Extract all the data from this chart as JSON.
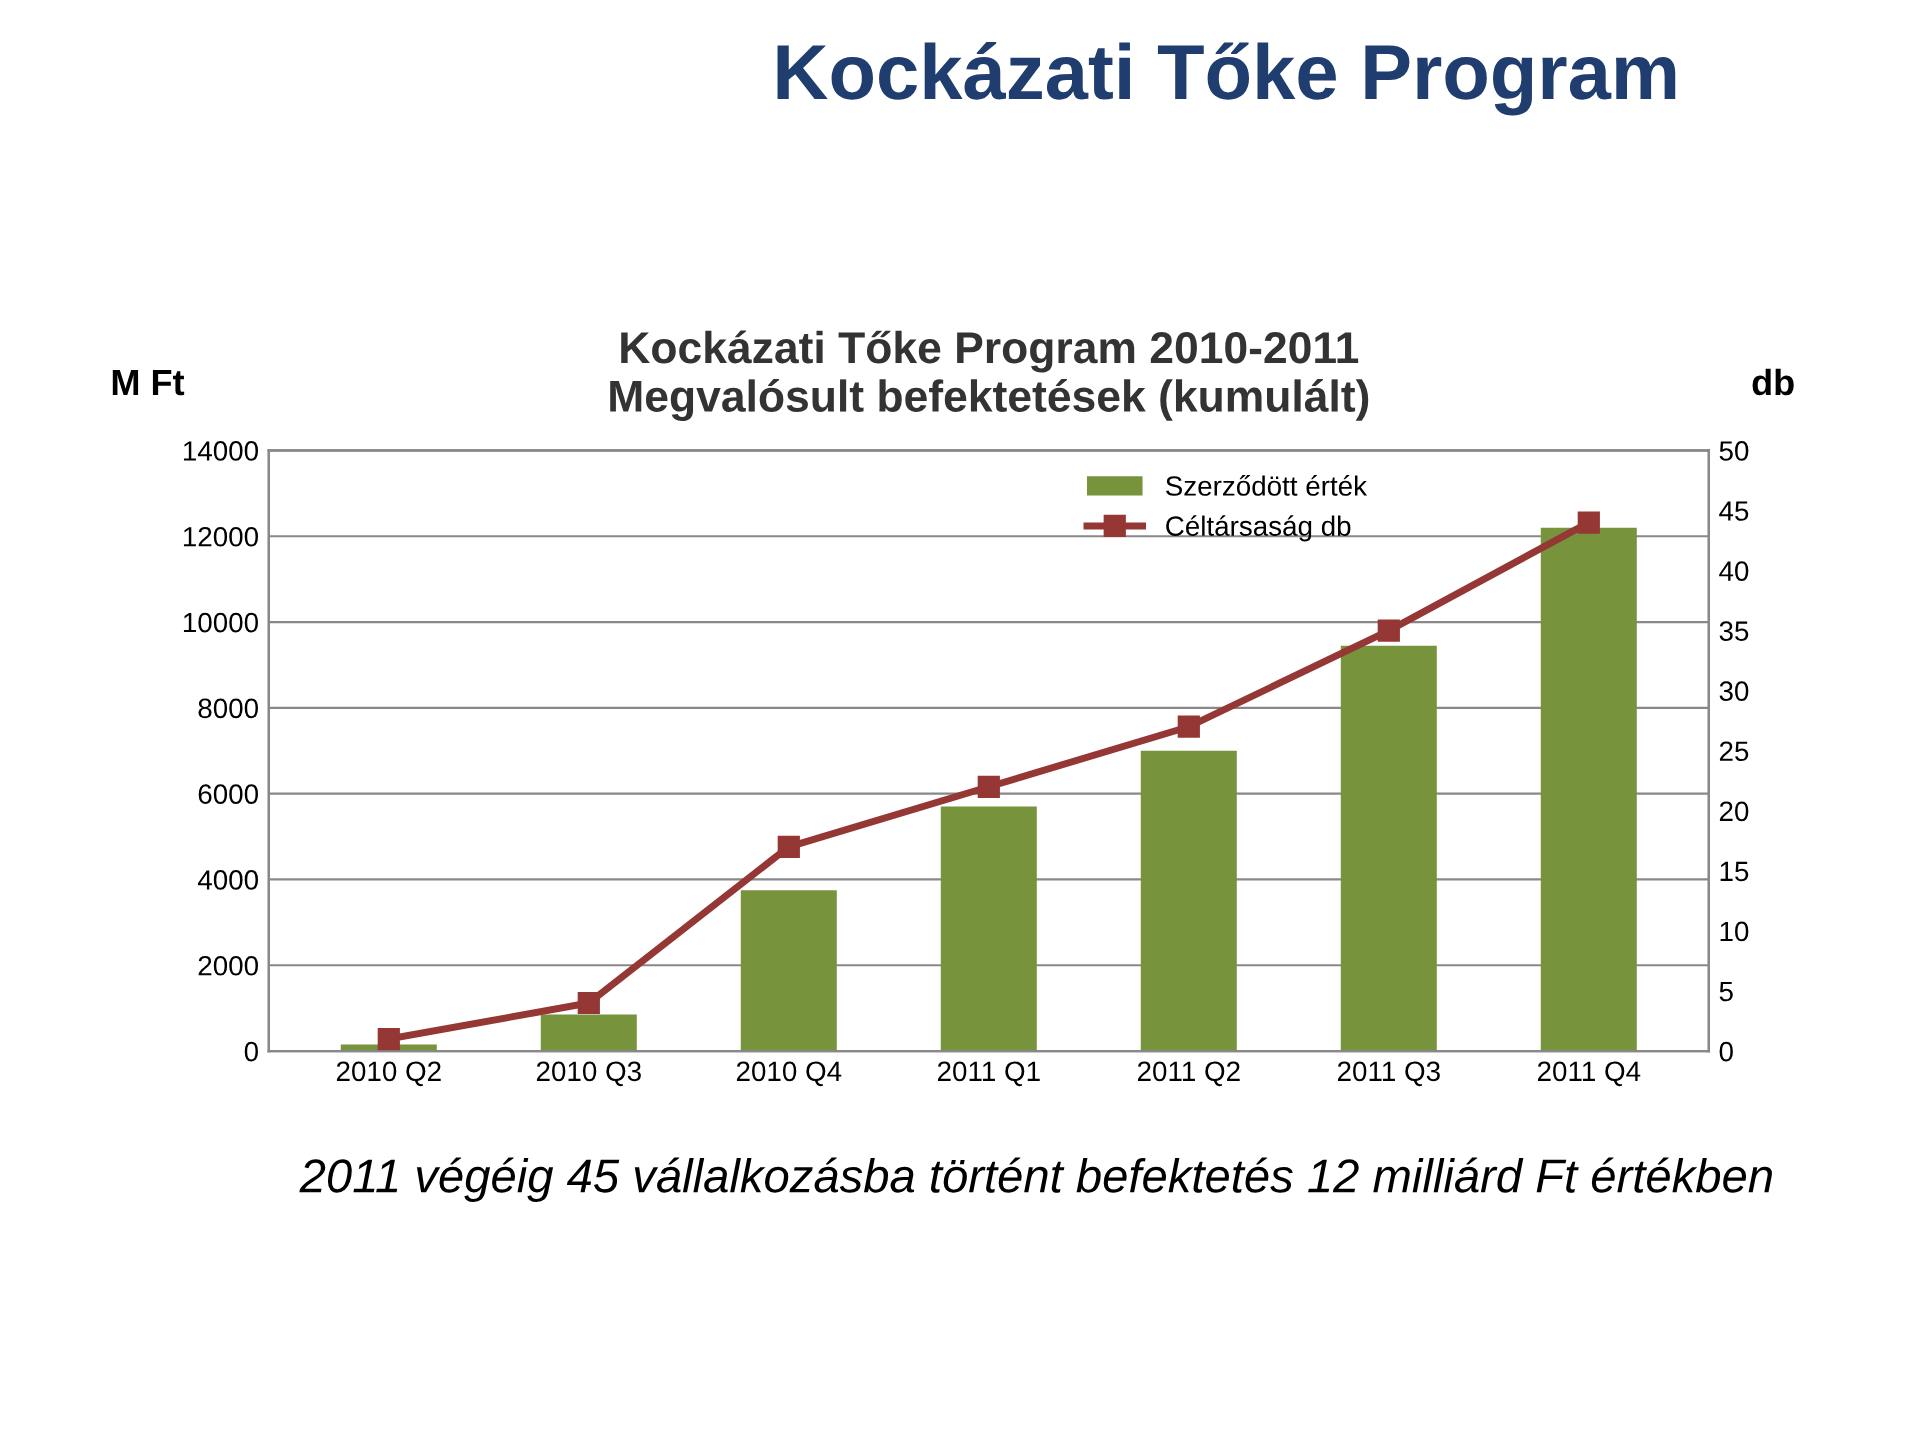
{
  "chart_data": {
    "type": "bar",
    "title": "Kockázati Tőke Program",
    "subtitle": "Kockázati Tőke Program 2010-2011\nMegvalósult befektetések (kumulált)",
    "ylabel": "M Ft",
    "y2label": "db",
    "categories": [
      "2010 Q2",
      "2010 Q3",
      "2010 Q4",
      "2011 Q1",
      "2011 Q2",
      "2011 Q3",
      "2011 Q4"
    ],
    "series": [
      {
        "name": "Szerződött érték",
        "color": "#77933c",
        "values": [
          150,
          850,
          3750,
          5700,
          7000,
          9450,
          12200
        ]
      },
      {
        "name": "Céltársaság db",
        "type": "line",
        "axis": "y2",
        "color": "#953735",
        "marker": "square",
        "values": [
          1,
          4,
          17,
          22,
          27,
          35,
          44
        ]
      }
    ],
    "ylim": [
      0,
      14000
    ],
    "yticks": [
      0,
      2000,
      4000,
      6000,
      8000,
      10000,
      12000,
      14000
    ],
    "y2lim": [
      0,
      50
    ],
    "y2ticks": [
      0,
      5,
      10,
      15,
      20,
      25,
      30,
      35,
      40,
      45,
      50
    ],
    "grid": "y",
    "legend": "top right",
    "annotations": [
      "2011 végéig 45 vállalkozásba történt befektetés 12 milliárd Ft értékben"
    ]
  }
}
